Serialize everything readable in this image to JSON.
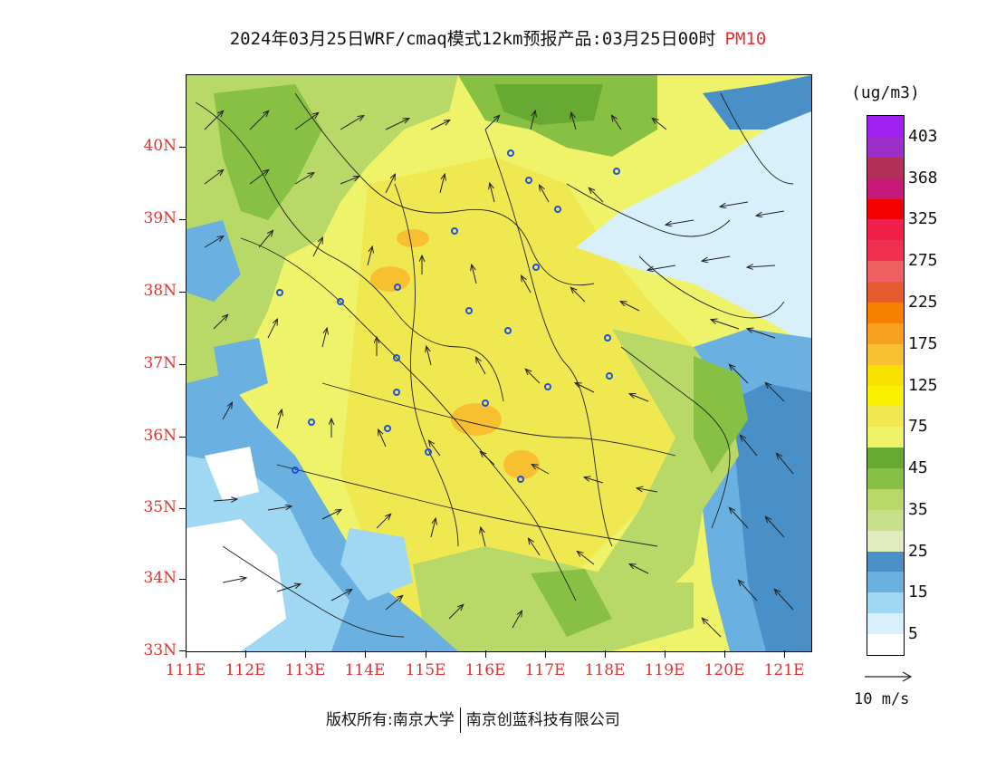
{
  "title": {
    "main": "2024年03月25日WRF/cmaq模式12km预报产品:03月25日00时",
    "pollutant": "PM10"
  },
  "map": {
    "lat_labels": [
      "40N",
      "39N",
      "38N",
      "37N",
      "36N",
      "35N",
      "34N",
      "33N"
    ],
    "lon_labels": [
      "111E",
      "112E",
      "113E",
      "114E",
      "115E",
      "116E",
      "117E",
      "118E",
      "119E",
      "120E",
      "121E"
    ],
    "stations": 22
  },
  "legend": {
    "unit": "(ug/m3)",
    "levels": [
      {
        "label": "403",
        "color": "#a020f0"
      },
      {
        "label": "",
        "color": "#9b2fc8"
      },
      {
        "label": "368",
        "color": "#b0305a"
      },
      {
        "label": "",
        "color": "#c8187a"
      },
      {
        "label": "325",
        "color": "#f40000"
      },
      {
        "label": "",
        "color": "#f0204a"
      },
      {
        "label": "275",
        "color": "#f03050"
      },
      {
        "label": "",
        "color": "#f06060"
      },
      {
        "label": "225",
        "color": "#e85a30"
      },
      {
        "label": "",
        "color": "#f88000"
      },
      {
        "label": "175",
        "color": "#f8a020"
      },
      {
        "label": "",
        "color": "#f8c030"
      },
      {
        "label": "125",
        "color": "#f8e000"
      },
      {
        "label": "",
        "color": "#fbf000"
      },
      {
        "label": "75",
        "color": "#f0e850"
      },
      {
        "label": "",
        "color": "#eef36a"
      },
      {
        "label": "45",
        "color": "#66aa33"
      },
      {
        "label": "",
        "color": "#88c044"
      },
      {
        "label": "35",
        "color": "#b8d868"
      },
      {
        "label": "",
        "color": "#c8e08a"
      },
      {
        "label": "25",
        "color": "#e0ebc0"
      },
      {
        "label": "",
        "color": "#4a90c8"
      },
      {
        "label": "15",
        "color": "#6ab0e0"
      },
      {
        "label": "",
        "color": "#a0d8f4"
      },
      {
        "label": "5",
        "color": "#d8f0fb"
      },
      {
        "label": "",
        "color": "#ffffff"
      }
    ],
    "reference_wind": "10 m/s"
  },
  "footer": {
    "copyright": "版权所有:南京大学",
    "company": "南京创蓝科技有限公司"
  }
}
